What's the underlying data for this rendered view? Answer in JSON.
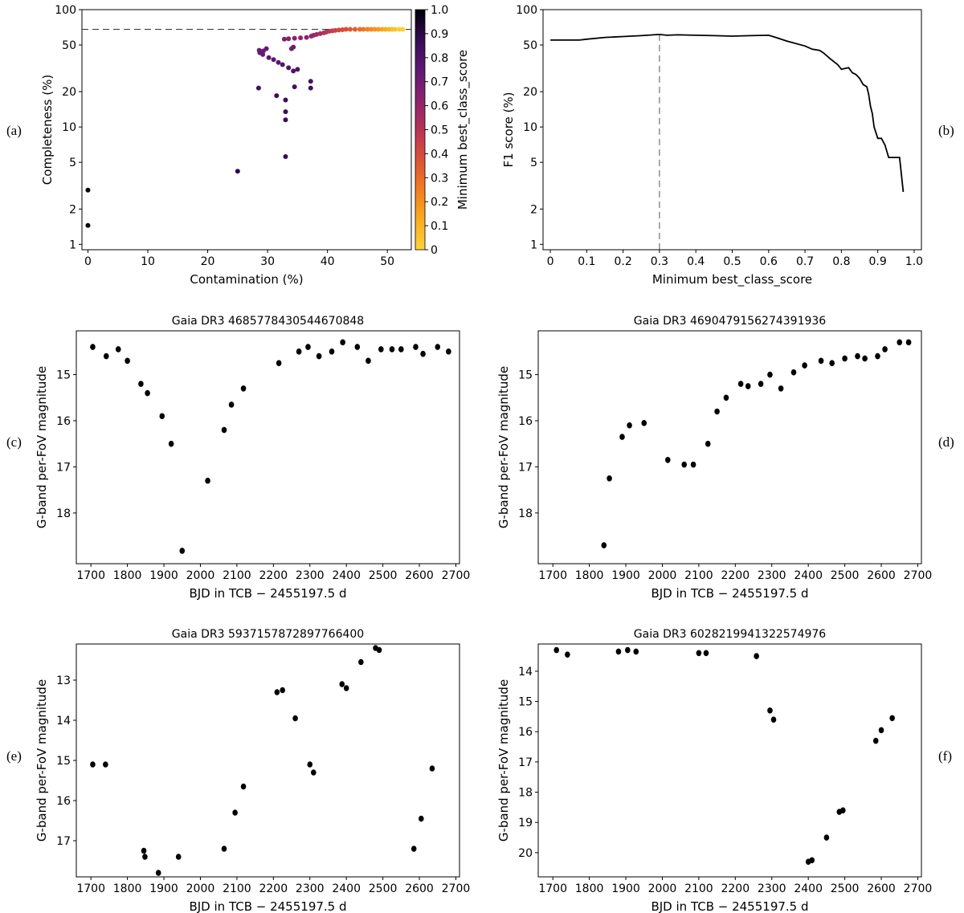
{
  "figure_labels": [
    "(a)",
    "(b)",
    "(c)",
    "(d)",
    "(e)",
    "(f)"
  ],
  "chart_data": [
    {
      "id": "a",
      "type": "scatter",
      "title": "",
      "xlabel": "Contamination (%)",
      "ylabel": "Completeness (%)",
      "xscale": "linear",
      "yscale": "log",
      "xlim": [
        -1,
        54
      ],
      "ylim": [
        0.9,
        100
      ],
      "xticks": [
        0,
        10,
        20,
        30,
        40,
        50
      ],
      "yticks": [
        1,
        2,
        5,
        10,
        20,
        50,
        100
      ],
      "reference_line_y": 68,
      "colorbar": {
        "label": "Minimum best_class_score",
        "min": 0,
        "max": 1.0,
        "ticks": [
          "0",
          "0.1",
          "0.2",
          "0.3",
          "0.4",
          "0.5",
          "0.6",
          "0.7",
          "0.8",
          "0.9",
          "1.0"
        ],
        "colormap": "inferno_r"
      },
      "points": [
        [
          0,
          2.9,
          0.99
        ],
        [
          0,
          1.45,
          0.99
        ],
        [
          25,
          4.2,
          0.9
        ],
        [
          33,
          5.6,
          0.87
        ],
        [
          33,
          11.5,
          0.86
        ],
        [
          33,
          13.5,
          0.86
        ],
        [
          33,
          17,
          0.85
        ],
        [
          31.5,
          18.5,
          0.85
        ],
        [
          28.5,
          21.5,
          0.84
        ],
        [
          34.5,
          22,
          0.83
        ],
        [
          37.2,
          21.5,
          0.83
        ],
        [
          37.2,
          24.5,
          0.82
        ],
        [
          35,
          31,
          0.8
        ],
        [
          34.3,
          30,
          0.8
        ],
        [
          33.5,
          32,
          0.8
        ],
        [
          32.5,
          34,
          0.78
        ],
        [
          31.8,
          35.5,
          0.77
        ],
        [
          31,
          37.5,
          0.76
        ],
        [
          30.2,
          39,
          0.75
        ],
        [
          29.2,
          41.5,
          0.74
        ],
        [
          28.7,
          43,
          0.73
        ],
        [
          28.6,
          45,
          0.72
        ],
        [
          29.3,
          44.5,
          0.72
        ],
        [
          29.8,
          46.5,
          0.72
        ],
        [
          34,
          46.5,
          0.7
        ],
        [
          34.3,
          48,
          0.7
        ],
        [
          32.8,
          56,
          0.66
        ],
        [
          33.5,
          56.5,
          0.65
        ],
        [
          34.5,
          57,
          0.63
        ],
        [
          35.5,
          57.5,
          0.62
        ],
        [
          36.5,
          58,
          0.61
        ],
        [
          37.3,
          59.5,
          0.6
        ],
        [
          37.7,
          60.5,
          0.58
        ],
        [
          38.2,
          61.5,
          0.56
        ],
        [
          38.8,
          62.5,
          0.54
        ],
        [
          39.4,
          63.5,
          0.52
        ],
        [
          39.8,
          64.5,
          0.5
        ],
        [
          40.3,
          65.5,
          0.48
        ],
        [
          40.8,
          66,
          0.46
        ],
        [
          41.3,
          66.5,
          0.44
        ],
        [
          41.9,
          67,
          0.42
        ],
        [
          42.5,
          67.5,
          0.4
        ],
        [
          43.1,
          68,
          0.38
        ],
        [
          43.8,
          68,
          0.36
        ],
        [
          44.6,
          68,
          0.34
        ],
        [
          45.4,
          68,
          0.3
        ],
        [
          46,
          68,
          0.27
        ],
        [
          46.7,
          68,
          0.25
        ],
        [
          47.3,
          68,
          0.22
        ],
        [
          47.9,
          68,
          0.2
        ],
        [
          48.5,
          68,
          0.18
        ],
        [
          49.1,
          68,
          0.15
        ],
        [
          49.7,
          68,
          0.12
        ],
        [
          50.3,
          68,
          0.1
        ],
        [
          50.8,
          68,
          0.07
        ],
        [
          51.3,
          68,
          0.05
        ],
        [
          52,
          68,
          0.02
        ],
        [
          52.6,
          68,
          0.01
        ]
      ]
    },
    {
      "id": "b",
      "type": "line",
      "title": "",
      "xlabel": "Minimum best_class_score",
      "ylabel": "F1 score (%)",
      "xscale": "linear",
      "yscale": "log",
      "xlim": [
        -0.02,
        1.02
      ],
      "ylim": [
        0.9,
        100
      ],
      "xticks": [
        "0",
        "0.1",
        "0.2",
        "0.3",
        "0.4",
        "0.5",
        "0.6",
        "0.7",
        "0.8",
        "0.9",
        "1.0"
      ],
      "yticks": [
        1,
        2,
        5,
        10,
        20,
        50,
        100
      ],
      "reference_line_x": 0.3,
      "x": [
        0,
        0.02,
        0.05,
        0.08,
        0.1,
        0.15,
        0.2,
        0.25,
        0.3,
        0.32,
        0.35,
        0.4,
        0.45,
        0.5,
        0.55,
        0.6,
        0.62,
        0.65,
        0.7,
        0.72,
        0.74,
        0.75,
        0.77,
        0.79,
        0.8,
        0.82,
        0.83,
        0.84,
        0.85,
        0.86,
        0.87,
        0.875,
        0.88,
        0.885,
        0.89,
        0.9,
        0.91,
        0.92,
        0.93,
        0.94,
        0.95,
        0.96,
        0.97
      ],
      "y": [
        55,
        55,
        55,
        55,
        56,
        58,
        59,
        60,
        61.5,
        60.5,
        61,
        60.5,
        60,
        59.5,
        60,
        60.5,
        58,
        54,
        49,
        46,
        45,
        43,
        38,
        34,
        31,
        32,
        29,
        28,
        26,
        23,
        22,
        19,
        15,
        13,
        10,
        8,
        8,
        7,
        5.5,
        5.5,
        5.5,
        5.5,
        2.8
      ]
    },
    {
      "id": "c",
      "type": "scatter",
      "title": "Gaia DR3 4685778430544670848",
      "xlabel": "BJD in TCB − 2455197.5 d",
      "ylabel": "G-band per-FoV magnitude",
      "xlim": [
        1660,
        2710
      ],
      "ylim": [
        19.1,
        14.05
      ],
      "y_inverted": true,
      "xticks": [
        1700,
        1800,
        1900,
        2000,
        2100,
        2200,
        2300,
        2400,
        2500,
        2600,
        2700
      ],
      "yticks": [
        15,
        16,
        17,
        18
      ],
      "points": [
        [
          1705,
          14.4
        ],
        [
          1742,
          14.6
        ],
        [
          1775,
          14.45
        ],
        [
          1800,
          14.7
        ],
        [
          1837,
          15.2
        ],
        [
          1855,
          15.4
        ],
        [
          1895,
          15.9
        ],
        [
          1920,
          16.5
        ],
        [
          1950,
          18.82
        ],
        [
          2020,
          17.3
        ],
        [
          2065,
          16.2
        ],
        [
          2085,
          15.65
        ],
        [
          2118,
          15.3
        ],
        [
          2215,
          14.75
        ],
        [
          2270,
          14.5
        ],
        [
          2295,
          14.4
        ],
        [
          2325,
          14.6
        ],
        [
          2360,
          14.5
        ],
        [
          2390,
          14.3
        ],
        [
          2430,
          14.4
        ],
        [
          2460,
          14.7
        ],
        [
          2495,
          14.45
        ],
        [
          2525,
          14.45
        ],
        [
          2550,
          14.45
        ],
        [
          2590,
          14.4
        ],
        [
          2610,
          14.55
        ],
        [
          2650,
          14.4
        ],
        [
          2680,
          14.5
        ]
      ]
    },
    {
      "id": "d",
      "type": "scatter",
      "title": "Gaia DR3 4690479156274391936",
      "xlabel": "BJD in TCB − 2455197.5 d",
      "ylabel": "G-band per-FoV magnitude",
      "xlim": [
        1660,
        2710
      ],
      "ylim": [
        19.1,
        14.05
      ],
      "y_inverted": true,
      "xticks": [
        1700,
        1800,
        1900,
        2000,
        2100,
        2200,
        2300,
        2400,
        2500,
        2600,
        2700
      ],
      "yticks": [
        15,
        16,
        17,
        18
      ],
      "points": [
        [
          1840,
          18.7
        ],
        [
          1855,
          17.25
        ],
        [
          1890,
          16.35
        ],
        [
          1910,
          16.1
        ],
        [
          1950,
          16.05
        ],
        [
          2015,
          16.85
        ],
        [
          2060,
          16.95
        ],
        [
          2085,
          16.95
        ],
        [
          2125,
          16.5
        ],
        [
          2150,
          15.8
        ],
        [
          2175,
          15.5
        ],
        [
          2215,
          15.2
        ],
        [
          2235,
          15.25
        ],
        [
          2270,
          15.2
        ],
        [
          2295,
          15.0
        ],
        [
          2325,
          15.3
        ],
        [
          2360,
          14.95
        ],
        [
          2390,
          14.8
        ],
        [
          2435,
          14.7
        ],
        [
          2465,
          14.75
        ],
        [
          2500,
          14.65
        ],
        [
          2535,
          14.6
        ],
        [
          2555,
          14.65
        ],
        [
          2590,
          14.6
        ],
        [
          2610,
          14.45
        ],
        [
          2650,
          14.3
        ],
        [
          2675,
          14.3
        ]
      ]
    },
    {
      "id": "e",
      "type": "scatter",
      "title": "Gaia DR3 5937157872897766400",
      "xlabel": "BJD in TCB − 2455197.5 d",
      "ylabel": "G-band per-FoV magnitude",
      "xlim": [
        1660,
        2710
      ],
      "ylim": [
        17.9,
        12.1
      ],
      "y_inverted": true,
      "xticks": [
        1700,
        1800,
        1900,
        2000,
        2100,
        2200,
        2300,
        2400,
        2500,
        2600,
        2700
      ],
      "yticks": [
        13,
        14,
        15,
        16,
        17
      ],
      "points": [
        [
          1705,
          15.1
        ],
        [
          1740,
          15.1
        ],
        [
          1845,
          17.25
        ],
        [
          1848,
          17.4
        ],
        [
          1885,
          17.8
        ],
        [
          1940,
          17.4
        ],
        [
          2065,
          17.2
        ],
        [
          2095,
          16.3
        ],
        [
          2118,
          15.65
        ],
        [
          2210,
          13.3
        ],
        [
          2225,
          13.25
        ],
        [
          2260,
          13.95
        ],
        [
          2300,
          15.1
        ],
        [
          2310,
          15.3
        ],
        [
          2388,
          13.1
        ],
        [
          2400,
          13.2
        ],
        [
          2440,
          12.55
        ],
        [
          2480,
          12.2
        ],
        [
          2490,
          12.25
        ],
        [
          2585,
          17.2
        ],
        [
          2605,
          16.45
        ],
        [
          2635,
          15.2
        ]
      ]
    },
    {
      "id": "f",
      "type": "scatter",
      "title": "Gaia DR3 6028219941322574976",
      "xlabel": "BJD in TCB − 2455197.5 d",
      "ylabel": "G-band per-FoV magnitude",
      "xlim": [
        1660,
        2710
      ],
      "ylim": [
        20.8,
        13.1
      ],
      "y_inverted": true,
      "xticks": [
        1700,
        1800,
        1900,
        2000,
        2100,
        2200,
        2300,
        2400,
        2500,
        2600,
        2700
      ],
      "yticks": [
        14,
        15,
        16,
        17,
        18,
        19,
        20
      ],
      "points": [
        [
          1710,
          13.3
        ],
        [
          1740,
          13.45
        ],
        [
          1880,
          13.35
        ],
        [
          1905,
          13.3
        ],
        [
          1928,
          13.35
        ],
        [
          2100,
          13.4
        ],
        [
          2120,
          13.4
        ],
        [
          2258,
          13.5
        ],
        [
          2295,
          15.3
        ],
        [
          2305,
          15.6
        ],
        [
          2400,
          20.3
        ],
        [
          2410,
          20.25
        ],
        [
          2450,
          19.5
        ],
        [
          2485,
          18.65
        ],
        [
          2495,
          18.6
        ],
        [
          2585,
          16.3
        ],
        [
          2600,
          15.95
        ],
        [
          2630,
          15.55
        ]
      ]
    }
  ]
}
